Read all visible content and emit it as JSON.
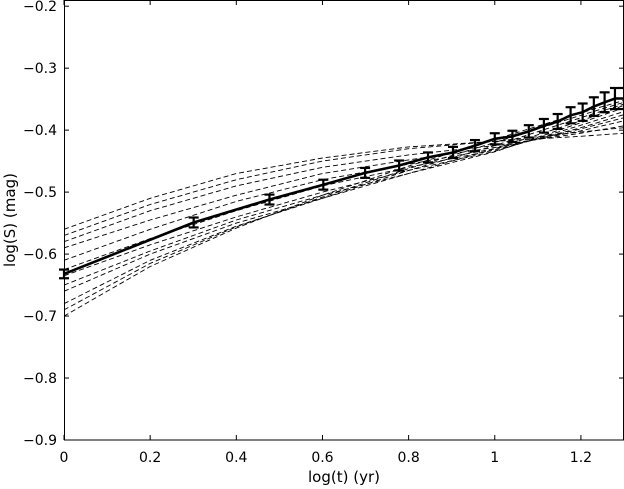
{
  "chart_data": {
    "type": "line",
    "xlabel": "log(t) (yr)",
    "ylabel": "log(S) (mag)",
    "xlim": [
      0,
      1.3
    ],
    "ylim": [
      -0.9,
      -0.19
    ],
    "x_ticks": [
      0,
      0.2,
      0.4,
      0.6,
      0.8,
      1,
      1.2
    ],
    "x_tick_labels": [
      "0",
      "0.2",
      "0.4",
      "0.6",
      "0.8",
      "1",
      "1.2"
    ],
    "y_ticks": [
      -0.9,
      -0.8,
      -0.7,
      -0.6,
      -0.5,
      -0.4,
      -0.3,
      -0.2
    ],
    "y_tick_labels": [
      "−0.9",
      "−0.8",
      "−0.7",
      "−0.6",
      "−0.5",
      "−0.4",
      "−0.3",
      "−0.2"
    ],
    "grid": false,
    "legend": "none",
    "main_series": {
      "style": "solid-thick-with-errorbars",
      "color": "#000000",
      "x": [
        0,
        0.301,
        0.477,
        0.602,
        0.699,
        0.778,
        0.845,
        0.903,
        0.954,
        1.0,
        1.041,
        1.079,
        1.114,
        1.146,
        1.176,
        1.204,
        1.23,
        1.255,
        1.279,
        1.301
      ],
      "y": [
        -0.632,
        -0.549,
        -0.512,
        -0.488,
        -0.469,
        -0.457,
        -0.444,
        -0.436,
        -0.425,
        -0.414,
        -0.41,
        -0.402,
        -0.393,
        -0.386,
        -0.376,
        -0.371,
        -0.362,
        -0.355,
        -0.349,
        -0.349
      ],
      "err": [
        0.007,
        0.008,
        0.008,
        0.008,
        0.008,
        0.008,
        0.008,
        0.009,
        0.009,
        0.009,
        0.009,
        0.01,
        0.011,
        0.012,
        0.013,
        0.014,
        0.015,
        0.016,
        0.017,
        0.017
      ]
    },
    "model_series": {
      "style": "dashed-thin",
      "color": "#000000",
      "x": [
        0,
        0.2,
        0.4,
        0.6,
        0.8,
        1.0,
        1.2,
        1.3
      ],
      "curves": [
        [
          -0.56,
          -0.51,
          -0.47,
          -0.445,
          -0.427,
          -0.418,
          -0.41,
          -0.405
        ],
        [
          -0.57,
          -0.52,
          -0.48,
          -0.45,
          -0.43,
          -0.418,
          -0.403,
          -0.396
        ],
        [
          -0.58,
          -0.53,
          -0.49,
          -0.46,
          -0.44,
          -0.425,
          -0.405,
          -0.393
        ],
        [
          -0.59,
          -0.545,
          -0.505,
          -0.47,
          -0.448,
          -0.428,
          -0.401,
          -0.385
        ],
        [
          -0.61,
          -0.56,
          -0.515,
          -0.48,
          -0.455,
          -0.43,
          -0.398,
          -0.38
        ],
        [
          -0.625,
          -0.575,
          -0.53,
          -0.49,
          -0.46,
          -0.432,
          -0.396,
          -0.375
        ],
        [
          -0.635,
          -0.585,
          -0.54,
          -0.5,
          -0.465,
          -0.434,
          -0.392,
          -0.37
        ],
        [
          -0.65,
          -0.595,
          -0.545,
          -0.505,
          -0.47,
          -0.435,
          -0.388,
          -0.364
        ],
        [
          -0.66,
          -0.6,
          -0.55,
          -0.51,
          -0.47,
          -0.43,
          -0.385,
          -0.36
        ],
        [
          -0.68,
          -0.61,
          -0.555,
          -0.51,
          -0.465,
          -0.425,
          -0.38,
          -0.358
        ],
        [
          -0.69,
          -0.615,
          -0.556,
          -0.508,
          -0.462,
          -0.42,
          -0.376,
          -0.355
        ],
        [
          -0.7,
          -0.62,
          -0.558,
          -0.505,
          -0.458,
          -0.415,
          -0.372,
          -0.352
        ]
      ]
    }
  }
}
